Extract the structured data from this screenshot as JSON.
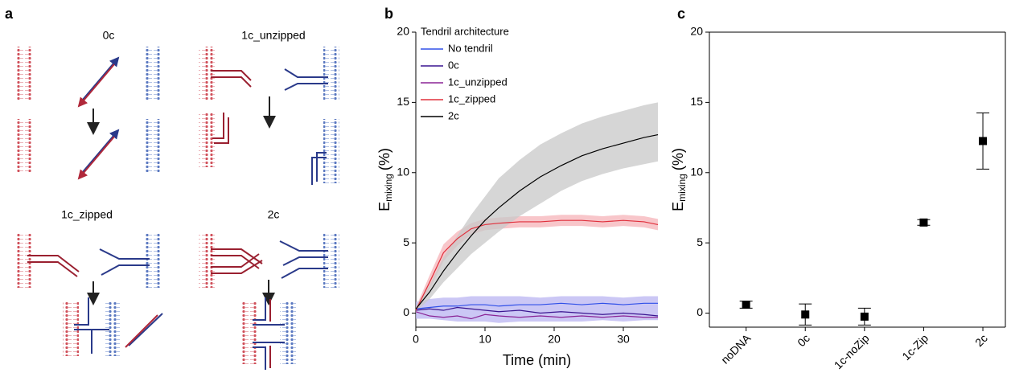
{
  "panels": {
    "a": "a"
  },
  "diagram": {
    "labels": [
      "0c",
      "1c_unzipped",
      "1c_zipped",
      "2c"
    ]
  },
  "chart_data": [
    {
      "type": "line",
      "panel": "b",
      "xlabel": "Time (min)",
      "ylabel": {
        "main": "E",
        "sub": "mixing",
        "unit": "(%)"
      },
      "legend_title": "Tendril architecture",
      "legend": "upper left",
      "xlim": [
        0,
        35
      ],
      "xticks": [
        0,
        10,
        20,
        30
      ],
      "ylim": [
        -1,
        20
      ],
      "yticks": [
        0,
        5,
        10,
        15,
        20
      ],
      "box": false,
      "x": [
        0,
        2,
        4,
        6,
        8,
        10,
        12,
        15,
        18,
        21,
        24,
        27,
        30,
        33,
        35
      ],
      "series": [
        {
          "name": "No tendril",
          "color": "#3050e8",
          "band_color": "#b9b4f2",
          "values": [
            0.3,
            0.4,
            0.5,
            0.5,
            0.6,
            0.6,
            0.5,
            0.6,
            0.6,
            0.7,
            0.6,
            0.7,
            0.6,
            0.7,
            0.7
          ],
          "lower": [
            -0.4,
            -0.4,
            -0.5,
            -0.6,
            -0.6,
            -0.6,
            -0.7,
            -0.6,
            -0.6,
            -0.6,
            -0.6,
            -0.5,
            -0.6,
            -0.5,
            -0.5
          ],
          "upper": [
            0.8,
            1.0,
            1.1,
            1.1,
            1.2,
            1.2,
            1.2,
            1.2,
            1.1,
            1.2,
            1.2,
            1.2,
            1.1,
            1.2,
            1.2
          ]
        },
        {
          "name": "0c",
          "color": "#3a1590",
          "values": [
            0.2,
            0.3,
            0.2,
            0.4,
            0.3,
            0.2,
            0.1,
            0.2,
            0.0,
            0.1,
            0.0,
            -0.1,
            0.0,
            -0.1,
            -0.2
          ]
        },
        {
          "name": "1c_unzipped",
          "color": "#8a2496",
          "values": [
            0.1,
            -0.2,
            -0.3,
            -0.2,
            -0.4,
            -0.1,
            -0.2,
            -0.3,
            -0.2,
            -0.3,
            -0.2,
            -0.3,
            -0.2,
            -0.3,
            -0.3
          ]
        },
        {
          "name": "1c_zipped",
          "color": "#e0303c",
          "band_color": "#f6b3b8",
          "values": [
            0.2,
            2.2,
            4.3,
            5.3,
            6.0,
            6.3,
            6.4,
            6.5,
            6.5,
            6.6,
            6.6,
            6.5,
            6.6,
            6.5,
            6.3
          ],
          "lower": [
            0.0,
            1.7,
            3.7,
            4.8,
            5.6,
            5.9,
            6.0,
            6.1,
            6.1,
            6.2,
            6.2,
            6.1,
            6.2,
            6.1,
            5.9
          ],
          "upper": [
            0.4,
            2.7,
            4.9,
            5.8,
            6.4,
            6.7,
            6.8,
            6.9,
            6.9,
            7.0,
            7.0,
            6.9,
            7.0,
            6.9,
            6.7
          ]
        },
        {
          "name": "2c",
          "color": "#000000",
          "band_color": "#c8c8c8",
          "values": [
            0.3,
            1.5,
            3.0,
            4.3,
            5.5,
            6.6,
            7.5,
            8.7,
            9.7,
            10.5,
            11.2,
            11.7,
            12.1,
            12.5,
            12.7
          ],
          "lower": [
            0.1,
            1.0,
            2.2,
            3.2,
            4.2,
            5.0,
            5.8,
            6.9,
            7.8,
            8.7,
            9.4,
            9.9,
            10.3,
            10.6,
            10.8
          ],
          "upper": [
            0.5,
            2.0,
            4.0,
            5.5,
            7.0,
            8.3,
            9.6,
            10.9,
            12.0,
            12.8,
            13.5,
            14.0,
            14.4,
            14.8,
            15.0
          ]
        }
      ]
    },
    {
      "type": "errorbar",
      "panel": "c",
      "ylabel": {
        "main": "E",
        "sub": "mixing",
        "unit": "(%)"
      },
      "ylim": [
        -1,
        20
      ],
      "yticks": [
        0,
        5,
        10,
        15,
        20
      ],
      "box": true,
      "color": "#000000",
      "categories": [
        "noDNA",
        "0c",
        "1c-noZip",
        "1c-Zip",
        "2c"
      ],
      "values": [
        0.6,
        -0.1,
        -0.25,
        6.45,
        12.25
      ],
      "errors": [
        0.25,
        0.75,
        0.6,
        0.2,
        2.0
      ]
    }
  ]
}
